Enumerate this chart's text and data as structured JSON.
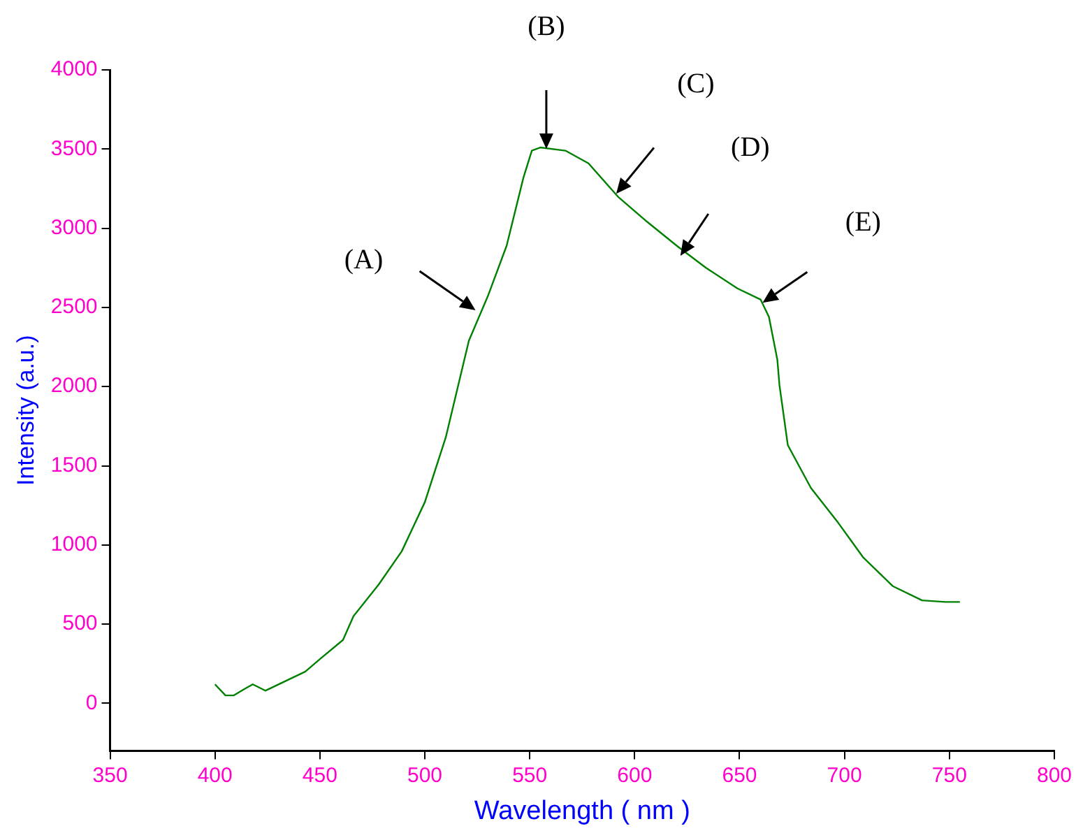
{
  "chart_data": {
    "type": "line",
    "xlabel": "Wavelength ( nm )",
    "ylabel": "Intensity (a.u.)",
    "xlim": [
      350,
      800
    ],
    "xticks": [
      350,
      400,
      450,
      500,
      550,
      600,
      650,
      700,
      750,
      800
    ],
    "ylim": [
      -300,
      4000
    ],
    "yticks": [
      0,
      500,
      1000,
      1500,
      2000,
      2500,
      3000,
      3500,
      4000
    ],
    "grid": false,
    "legend": false,
    "marker": "none",
    "line_style": "solid",
    "series": [
      {
        "color": "#008000",
        "x": [
          400,
          405,
          409,
          414,
          418,
          424,
          432,
          443,
          451,
          461,
          466,
          478,
          489,
          500,
          510,
          521,
          530,
          539,
          547,
          551,
          555,
          567,
          578,
          592,
          606,
          620,
          634,
          649,
          660,
          664,
          668,
          669,
          673,
          684,
          697,
          709,
          723,
          737,
          748,
          755
        ],
        "values": [
          120,
          50,
          50,
          90,
          120,
          80,
          130,
          200,
          290,
          400,
          550,
          750,
          960,
          1270,
          1680,
          2290,
          2570,
          2890,
          3320,
          3490,
          3510,
          3490,
          3410,
          3200,
          3040,
          2890,
          2750,
          2620,
          2550,
          2440,
          2170,
          2010,
          1630,
          1360,
          1140,
          920,
          740,
          650,
          640,
          640
        ]
      }
    ],
    "annotations": [
      "(A)",
      "(B)",
      "(C)",
      "(D)",
      "(E)"
    ]
  }
}
